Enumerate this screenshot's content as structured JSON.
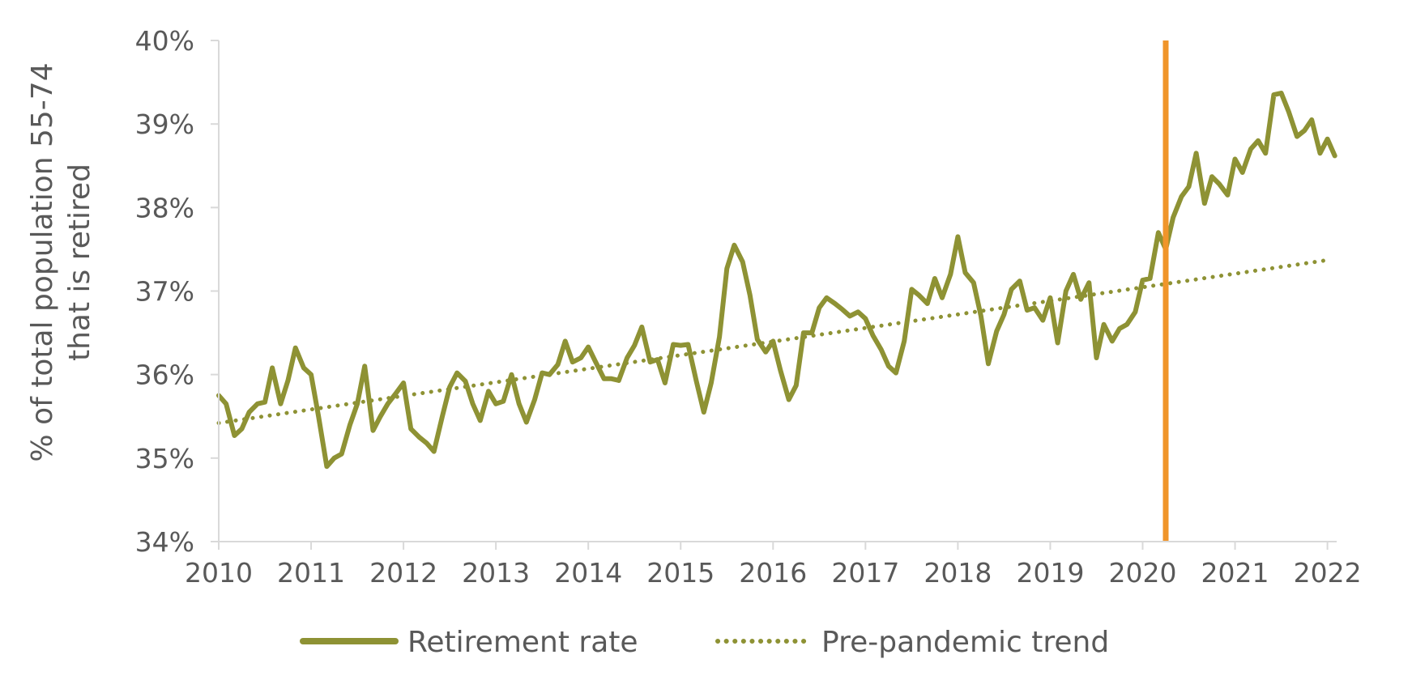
{
  "chart_data": {
    "type": "line",
    "title": "",
    "xlabel": "",
    "ylabel_lines": [
      "% of total population 55-74",
      "that is retired"
    ],
    "xlim": [
      2010,
      2022.1
    ],
    "ylim": [
      34,
      40
    ],
    "x_ticks": [
      2010,
      2011,
      2012,
      2013,
      2014,
      2015,
      2016,
      2017,
      2018,
      2019,
      2020,
      2021,
      2022
    ],
    "x_tick_labels": [
      "2010",
      "2011",
      "2012",
      "2013",
      "2014",
      "2015",
      "2016",
      "2017",
      "2018",
      "2019",
      "2020",
      "2021",
      "2022"
    ],
    "y_ticks": [
      34,
      35,
      36,
      37,
      38,
      39,
      40
    ],
    "y_tick_labels": [
      "34%",
      "35%",
      "36%",
      "37%",
      "38%",
      "39%",
      "40%"
    ],
    "grid": false,
    "legend_position": "bottom",
    "marker_line": {
      "x": 2020.25,
      "color": "#F0952A"
    },
    "series": [
      {
        "name": "Retirement rate",
        "style": "solid",
        "color": "#8E9234",
        "points": [
          [
            2010.0,
            35.75
          ],
          [
            2010.08,
            35.65
          ],
          [
            2010.17,
            35.27
          ],
          [
            2010.25,
            35.35
          ],
          [
            2010.33,
            35.55
          ],
          [
            2010.42,
            35.65
          ],
          [
            2010.5,
            35.67
          ],
          [
            2010.58,
            36.08
          ],
          [
            2010.67,
            35.65
          ],
          [
            2010.75,
            35.93
          ],
          [
            2010.83,
            36.32
          ],
          [
            2010.92,
            36.08
          ],
          [
            2011.0,
            36.0
          ],
          [
            2011.08,
            35.5
          ],
          [
            2011.17,
            34.9
          ],
          [
            2011.25,
            35.0
          ],
          [
            2011.33,
            35.05
          ],
          [
            2011.42,
            35.4
          ],
          [
            2011.5,
            35.65
          ],
          [
            2011.58,
            36.1
          ],
          [
            2011.67,
            35.33
          ],
          [
            2011.75,
            35.5
          ],
          [
            2011.83,
            35.65
          ],
          [
            2011.92,
            35.78
          ],
          [
            2012.0,
            35.9
          ],
          [
            2012.08,
            35.35
          ],
          [
            2012.17,
            35.25
          ],
          [
            2012.25,
            35.18
          ],
          [
            2012.33,
            35.08
          ],
          [
            2012.42,
            35.5
          ],
          [
            2012.5,
            35.85
          ],
          [
            2012.58,
            36.02
          ],
          [
            2012.67,
            35.92
          ],
          [
            2012.75,
            35.65
          ],
          [
            2012.83,
            35.45
          ],
          [
            2012.92,
            35.8
          ],
          [
            2013.0,
            35.65
          ],
          [
            2013.08,
            35.68
          ],
          [
            2013.17,
            36.0
          ],
          [
            2013.25,
            35.65
          ],
          [
            2013.33,
            35.43
          ],
          [
            2013.42,
            35.7
          ],
          [
            2013.5,
            36.02
          ],
          [
            2013.58,
            36.0
          ],
          [
            2013.67,
            36.12
          ],
          [
            2013.75,
            36.4
          ],
          [
            2013.83,
            36.15
          ],
          [
            2013.92,
            36.2
          ],
          [
            2014.0,
            36.33
          ],
          [
            2014.08,
            36.15
          ],
          [
            2014.17,
            35.95
          ],
          [
            2014.25,
            35.95
          ],
          [
            2014.33,
            35.93
          ],
          [
            2014.42,
            36.2
          ],
          [
            2014.5,
            36.35
          ],
          [
            2014.58,
            36.57
          ],
          [
            2014.67,
            36.15
          ],
          [
            2014.75,
            36.18
          ],
          [
            2014.83,
            35.9
          ],
          [
            2014.92,
            36.36
          ],
          [
            2015.0,
            36.35
          ],
          [
            2015.08,
            36.36
          ],
          [
            2015.17,
            35.92
          ],
          [
            2015.25,
            35.55
          ],
          [
            2015.33,
            35.9
          ],
          [
            2015.42,
            36.45
          ],
          [
            2015.5,
            37.27
          ],
          [
            2015.58,
            37.55
          ],
          [
            2015.67,
            37.35
          ],
          [
            2015.75,
            36.95
          ],
          [
            2015.83,
            36.42
          ],
          [
            2015.92,
            36.27
          ],
          [
            2016.0,
            36.4
          ],
          [
            2016.08,
            36.05
          ],
          [
            2016.17,
            35.7
          ],
          [
            2016.25,
            35.87
          ],
          [
            2016.33,
            36.5
          ],
          [
            2016.42,
            36.5
          ],
          [
            2016.5,
            36.8
          ],
          [
            2016.58,
            36.92
          ],
          [
            2016.67,
            36.85
          ],
          [
            2016.75,
            36.78
          ],
          [
            2016.83,
            36.7
          ],
          [
            2016.92,
            36.75
          ],
          [
            2017.0,
            36.67
          ],
          [
            2017.08,
            36.47
          ],
          [
            2017.17,
            36.3
          ],
          [
            2017.25,
            36.1
          ],
          [
            2017.33,
            36.02
          ],
          [
            2017.42,
            36.4
          ],
          [
            2017.5,
            37.02
          ],
          [
            2017.58,
            36.95
          ],
          [
            2017.67,
            36.85
          ],
          [
            2017.75,
            37.15
          ],
          [
            2017.83,
            36.92
          ],
          [
            2017.92,
            37.2
          ],
          [
            2018.0,
            37.65
          ],
          [
            2018.08,
            37.22
          ],
          [
            2018.17,
            37.1
          ],
          [
            2018.25,
            36.7
          ],
          [
            2018.33,
            36.13
          ],
          [
            2018.42,
            36.52
          ],
          [
            2018.5,
            36.72
          ],
          [
            2018.58,
            37.02
          ],
          [
            2018.67,
            37.12
          ],
          [
            2018.75,
            36.77
          ],
          [
            2018.83,
            36.8
          ],
          [
            2018.92,
            36.65
          ],
          [
            2019.0,
            36.92
          ],
          [
            2019.08,
            36.38
          ],
          [
            2019.17,
            37.0
          ],
          [
            2019.25,
            37.2
          ],
          [
            2019.33,
            36.9
          ],
          [
            2019.42,
            37.1
          ],
          [
            2019.5,
            36.2
          ],
          [
            2019.58,
            36.6
          ],
          [
            2019.67,
            36.4
          ],
          [
            2019.75,
            36.55
          ],
          [
            2019.83,
            36.6
          ],
          [
            2019.92,
            36.75
          ],
          [
            2020.0,
            37.13
          ],
          [
            2020.08,
            37.15
          ],
          [
            2020.17,
            37.7
          ],
          [
            2020.25,
            37.5
          ],
          [
            2020.33,
            37.88
          ],
          [
            2020.42,
            38.13
          ],
          [
            2020.5,
            38.25
          ],
          [
            2020.58,
            38.65
          ],
          [
            2020.67,
            38.05
          ],
          [
            2020.75,
            38.37
          ],
          [
            2020.83,
            38.28
          ],
          [
            2020.92,
            38.15
          ],
          [
            2021.0,
            38.58
          ],
          [
            2021.08,
            38.42
          ],
          [
            2021.17,
            38.7
          ],
          [
            2021.25,
            38.8
          ],
          [
            2021.33,
            38.65
          ],
          [
            2021.42,
            39.35
          ],
          [
            2021.5,
            39.37
          ],
          [
            2021.58,
            39.15
          ],
          [
            2021.67,
            38.85
          ],
          [
            2021.75,
            38.92
          ],
          [
            2021.83,
            39.05
          ],
          [
            2021.92,
            38.65
          ],
          [
            2022.0,
            38.82
          ],
          [
            2022.08,
            38.62
          ]
        ]
      },
      {
        "name": "Pre-pandemic trend",
        "style": "dotted",
        "color": "#8E9234",
        "points": [
          [
            2010.0,
            35.42
          ],
          [
            2022.0,
            37.37
          ]
        ]
      }
    ]
  }
}
